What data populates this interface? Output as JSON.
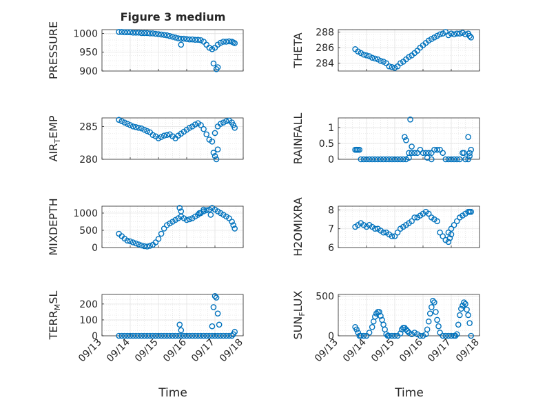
{
  "figure": {
    "title": "Figure 3 medium",
    "marker_color": "#0072BD",
    "axis_color": "#262626",
    "grid_color": "#dcdcdc"
  },
  "chart_data": [
    {
      "type": "scatter",
      "ylabel": "PRESSURE",
      "xlim": [
        0,
        5
      ],
      "ylim": [
        900,
        1010
      ],
      "yticks": [
        900,
        950,
        1000
      ],
      "xticklabels": [],
      "x": [
        0.6,
        0.7,
        0.8,
        0.9,
        1.0,
        1.1,
        1.2,
        1.3,
        1.4,
        1.5,
        1.6,
        1.7,
        1.8,
        1.9,
        2.0,
        2.1,
        2.2,
        2.3,
        2.4,
        2.5,
        2.6,
        2.7,
        2.8,
        2.9,
        3.0,
        3.1,
        3.2,
        3.3,
        3.4,
        3.5,
        3.6,
        3.7,
        3.8,
        3.9,
        4.0,
        4.1,
        4.2,
        4.3,
        4.4,
        4.5,
        4.6,
        4.65,
        4.7,
        2.8,
        3.95,
        4.1,
        4.05
      ],
      "y": [
        1004,
        1004,
        1003,
        1003,
        1003,
        1002,
        1002,
        1002,
        1001,
        1001,
        1001,
        1000,
        1000,
        999,
        998,
        997,
        996,
        995,
        993,
        991,
        989,
        987,
        986,
        986,
        985,
        984,
        984,
        983,
        983,
        982,
        978,
        970,
        962,
        958,
        962,
        970,
        975,
        978,
        978,
        979,
        978,
        976,
        974,
        970,
        920,
        910,
        905
      ]
    },
    {
      "type": "scatter",
      "ylabel": "THETA",
      "xlim": [
        0,
        5
      ],
      "ylim": [
        283,
        288.3
      ],
      "yticks": [
        284,
        286,
        288
      ],
      "xticklabels": [],
      "x": [
        0.6,
        0.7,
        0.8,
        0.9,
        1.0,
        1.1,
        1.2,
        1.3,
        1.4,
        1.5,
        1.6,
        1.7,
        1.8,
        1.9,
        2.0,
        2.1,
        2.2,
        2.3,
        2.4,
        2.5,
        2.6,
        2.7,
        2.8,
        2.9,
        3.0,
        3.1,
        3.2,
        3.3,
        3.4,
        3.5,
        3.6,
        3.7,
        3.8,
        3.9,
        4.0,
        4.1,
        4.2,
        4.3,
        4.4,
        4.5,
        4.6,
        4.65,
        4.7
      ],
      "y": [
        285.8,
        285.5,
        285.3,
        285.1,
        285.0,
        284.9,
        284.7,
        284.6,
        284.5,
        284.3,
        284.2,
        284.0,
        283.6,
        283.5,
        283.4,
        283.6,
        284.0,
        284.2,
        284.5,
        284.8,
        285.0,
        285.3,
        285.6,
        286.0,
        286.3,
        286.6,
        286.9,
        287.1,
        287.3,
        287.5,
        287.7,
        287.8,
        288.0,
        287.6,
        287.8,
        287.7,
        287.8,
        287.8,
        287.9,
        287.7,
        287.8,
        287.5,
        287.3
      ]
    },
    {
      "type": "scatter",
      "ylabel": "AIR_TEMP",
      "xlim": [
        0,
        5
      ],
      "ylim": [
        280,
        286.3
      ],
      "yticks": [
        280,
        285
      ],
      "xticklabels": [],
      "x": [
        0.6,
        0.7,
        0.8,
        0.9,
        1.0,
        1.1,
        1.2,
        1.3,
        1.4,
        1.5,
        1.6,
        1.7,
        1.8,
        1.9,
        2.0,
        2.1,
        2.2,
        2.3,
        2.4,
        2.5,
        2.6,
        2.7,
        2.8,
        2.9,
        3.0,
        3.1,
        3.2,
        3.3,
        3.4,
        3.5,
        3.6,
        3.7,
        3.8,
        3.9,
        4.0,
        4.1,
        4.2,
        4.3,
        4.4,
        4.5,
        4.6,
        4.65,
        4.7,
        3.95,
        4.0,
        4.05,
        4.1
      ],
      "y": [
        286.0,
        285.8,
        285.6,
        285.4,
        285.2,
        285.0,
        284.9,
        284.8,
        284.7,
        284.5,
        284.3,
        284.1,
        283.7,
        283.5,
        283.2,
        283.4,
        283.6,
        283.7,
        283.8,
        283.5,
        283.2,
        283.6,
        283.9,
        284.2,
        284.5,
        284.8,
        285.0,
        285.3,
        285.5,
        285.2,
        284.6,
        283.8,
        283.0,
        282.7,
        284.0,
        285.0,
        285.4,
        285.6,
        285.8,
        285.9,
        285.6,
        285.2,
        284.8,
        281.0,
        280.5,
        280.0,
        281.5
      ]
    },
    {
      "type": "scatter",
      "ylabel": "RAINFALL",
      "xlim": [
        0,
        5
      ],
      "ylim": [
        0,
        1.3
      ],
      "yticks": [
        0,
        0.5,
        1
      ],
      "xticklabels": [],
      "x": [
        0.6,
        0.7,
        0.8,
        0.9,
        1.0,
        1.1,
        1.2,
        1.3,
        1.4,
        1.5,
        1.6,
        1.7,
        1.8,
        1.9,
        2.0,
        2.1,
        2.2,
        2.3,
        2.4,
        2.5,
        2.6,
        2.7,
        2.8,
        2.9,
        3.0,
        3.1,
        3.2,
        3.3,
        3.4,
        3.5,
        3.6,
        3.7,
        3.8,
        3.9,
        4.0,
        4.1,
        4.2,
        4.3,
        4.4,
        4.5,
        4.6,
        4.65,
        4.7,
        2.35,
        2.4,
        2.55,
        2.6,
        2.5,
        3.15,
        3.3,
        4.45,
        4.6,
        4.65,
        0.65,
        0.75
      ],
      "y": [
        0.3,
        0.3,
        0,
        0,
        0,
        0,
        0,
        0,
        0,
        0,
        0,
        0,
        0,
        0,
        0,
        0,
        0,
        0,
        0,
        0.2,
        0.2,
        0.2,
        0.2,
        0.3,
        0.2,
        0.2,
        0.2,
        0.2,
        0.3,
        0.3,
        0.3,
        0.2,
        0,
        0,
        0,
        0,
        0,
        0,
        0.2,
        0,
        0,
        0.2,
        0.3,
        0.7,
        0.6,
        1.25,
        0.4,
        0.05,
        0.05,
        0,
        0.2,
        0.7,
        0.1,
        0.3,
        0.3
      ]
    },
    {
      "type": "scatter",
      "ylabel": "MIXDEPTH",
      "xlim": [
        0,
        5
      ],
      "ylim": [
        0,
        1200
      ],
      "yticks": [
        0,
        500,
        1000
      ],
      "xticklabels": [],
      "x": [
        0.6,
        0.7,
        0.8,
        0.9,
        1.0,
        1.1,
        1.2,
        1.3,
        1.4,
        1.5,
        1.6,
        1.7,
        1.8,
        1.9,
        2.0,
        2.1,
        2.2,
        2.3,
        2.4,
        2.5,
        2.6,
        2.7,
        2.8,
        2.9,
        3.0,
        3.1,
        3.2,
        3.3,
        3.4,
        3.5,
        3.6,
        3.7,
        3.8,
        3.9,
        4.0,
        4.1,
        4.2,
        4.3,
        4.4,
        4.5,
        4.6,
        4.65,
        4.7,
        2.75,
        2.8,
        3.45,
        3.6,
        3.85
      ],
      "y": [
        400,
        330,
        260,
        200,
        180,
        150,
        120,
        90,
        60,
        40,
        30,
        50,
        80,
        150,
        250,
        400,
        550,
        650,
        700,
        750,
        800,
        850,
        900,
        850,
        800,
        820,
        850,
        900,
        950,
        1000,
        1050,
        1080,
        1100,
        1150,
        1100,
        1050,
        1000,
        950,
        900,
        850,
        750,
        650,
        550,
        1150,
        1050,
        1000,
        1100,
        950
      ]
    },
    {
      "type": "scatter",
      "ylabel": "H2OMIXRA",
      "xlim": [
        0,
        5
      ],
      "ylim": [
        6,
        8.2
      ],
      "yticks": [
        6,
        7,
        8
      ],
      "xticklabels": [],
      "x": [
        0.6,
        0.7,
        0.8,
        0.9,
        1.0,
        1.1,
        1.2,
        1.3,
        1.4,
        1.5,
        1.6,
        1.7,
        1.8,
        1.9,
        2.0,
        2.1,
        2.2,
        2.3,
        2.4,
        2.5,
        2.6,
        2.7,
        2.8,
        2.9,
        3.0,
        3.1,
        3.2,
        3.3,
        3.4,
        3.5,
        3.6,
        3.7,
        3.8,
        3.9,
        4.0,
        4.1,
        4.2,
        4.3,
        4.4,
        4.5,
        4.6,
        4.65,
        4.7,
        3.9,
        3.95,
        4.0
      ],
      "y": [
        7.1,
        7.2,
        7.3,
        7.2,
        7.1,
        7.2,
        7.1,
        7.0,
        7.0,
        6.9,
        6.8,
        6.8,
        6.7,
        6.6,
        6.6,
        6.8,
        7.0,
        7.1,
        7.2,
        7.3,
        7.4,
        7.6,
        7.6,
        7.7,
        7.8,
        7.9,
        7.8,
        7.6,
        7.5,
        7.4,
        6.8,
        6.6,
        6.4,
        6.8,
        7.0,
        7.2,
        7.4,
        7.6,
        7.7,
        7.8,
        7.9,
        7.9,
        7.9,
        6.3,
        6.5,
        6.7
      ]
    },
    {
      "type": "scatter",
      "ylabel": "TERR_MSL",
      "xlim": [
        0,
        5
      ],
      "ylim": [
        0,
        260
      ],
      "yticks": [
        0,
        100,
        200
      ],
      "xticklabels": [
        "09/13",
        "09/14",
        "09/15",
        "09/16",
        "09/17",
        "09/18"
      ],
      "x": [
        0.6,
        0.7,
        0.8,
        0.9,
        1.0,
        1.1,
        1.2,
        1.3,
        1.4,
        1.5,
        1.6,
        1.7,
        1.8,
        1.9,
        2.0,
        2.1,
        2.2,
        2.3,
        2.4,
        2.5,
        2.6,
        2.7,
        2.8,
        2.9,
        3.0,
        3.1,
        3.2,
        3.3,
        3.4,
        3.5,
        3.6,
        3.7,
        3.8,
        3.9,
        4.0,
        4.1,
        4.2,
        4.3,
        4.4,
        4.5,
        4.6,
        4.65,
        4.7,
        3.9,
        3.95,
        4.0,
        4.05,
        4.1,
        4.15,
        2.75,
        2.8
      ],
      "y": [
        0,
        0,
        0,
        0,
        0,
        0,
        0,
        0,
        0,
        0,
        0,
        0,
        0,
        0,
        0,
        0,
        0,
        0,
        0,
        0,
        0,
        0,
        0,
        0,
        0,
        0,
        0,
        0,
        0,
        0,
        0,
        0,
        0,
        0,
        0,
        0,
        0,
        0,
        0,
        0,
        0,
        10,
        25,
        60,
        180,
        250,
        240,
        140,
        70,
        70,
        35
      ]
    },
    {
      "type": "scatter",
      "ylabel": "SUN_FLUX",
      "xlim": [
        0,
        5
      ],
      "ylim": [
        0,
        520
      ],
      "yticks": [
        0,
        500
      ],
      "xticklabels": [
        "09/13",
        "09/14",
        "09/15",
        "09/16",
        "09/17",
        "09/18"
      ],
      "x": [
        0.6,
        0.65,
        0.7,
        0.75,
        0.8,
        0.9,
        1.0,
        1.1,
        1.2,
        1.25,
        1.3,
        1.35,
        1.4,
        1.45,
        1.5,
        1.55,
        1.6,
        1.65,
        1.7,
        1.75,
        1.8,
        1.9,
        2.0,
        2.1,
        2.2,
        2.25,
        2.3,
        2.35,
        2.4,
        2.45,
        2.5,
        2.6,
        2.7,
        2.8,
        2.9,
        3.0,
        3.1,
        3.15,
        3.2,
        3.25,
        3.3,
        3.35,
        3.4,
        3.45,
        3.5,
        3.55,
        3.6,
        3.7,
        3.8,
        3.9,
        4.0,
        4.1,
        4.15,
        4.2,
        4.25,
        4.3,
        4.35,
        4.4,
        4.45,
        4.5,
        4.55,
        4.6,
        4.65,
        4.7
      ],
      "y": [
        110,
        80,
        40,
        0,
        0,
        0,
        0,
        40,
        110,
        180,
        240,
        280,
        300,
        300,
        250,
        200,
        140,
        80,
        20,
        0,
        0,
        0,
        0,
        0,
        30,
        80,
        100,
        100,
        80,
        60,
        40,
        20,
        40,
        20,
        0,
        0,
        20,
        80,
        180,
        280,
        360,
        440,
        420,
        300,
        200,
        120,
        40,
        0,
        0,
        0,
        0,
        0,
        0,
        20,
        140,
        260,
        340,
        380,
        420,
        400,
        330,
        260,
        160,
        0
      ]
    }
  ]
}
